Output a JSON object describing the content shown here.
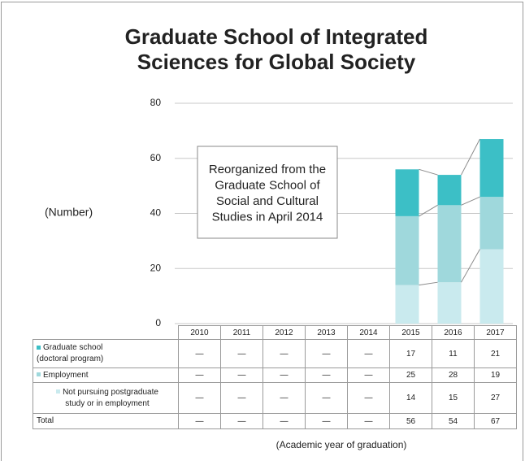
{
  "chart_data": {
    "type": "stacked_bar",
    "title": "Graduate School of Integrated\nSciences for Global Society",
    "y_label": "(Number)",
    "x_label": "(Academic year of graduation)",
    "annotation": "Reorganized from the\nGraduate School of\nSocial and Cultural\nStudies in April 2014",
    "categories": [
      "2010",
      "2011",
      "2012",
      "2013",
      "2014",
      "2015",
      "2016",
      "2017"
    ],
    "series": [
      {
        "name": "Graduate school\n(doctoral program)",
        "color": "#3cbfc6",
        "values": [
          null,
          null,
          null,
          null,
          null,
          17,
          11,
          21
        ]
      },
      {
        "name": "Employment",
        "color": "#9fd8dc",
        "values": [
          null,
          null,
          null,
          null,
          null,
          25,
          28,
          19
        ]
      },
      {
        "name": "Not pursuing postgraduate\nstudy or in employment",
        "color": "#c9eaee",
        "values": [
          null,
          null,
          null,
          null,
          null,
          14,
          15,
          27
        ]
      }
    ],
    "total": {
      "name": "Total",
      "values": [
        null,
        null,
        null,
        null,
        null,
        56,
        54,
        67
      ]
    },
    "empty_label": "—",
    "ylim": [
      0,
      80
    ],
    "yticks": [
      0,
      20,
      40,
      60,
      80
    ],
    "grid": true
  }
}
